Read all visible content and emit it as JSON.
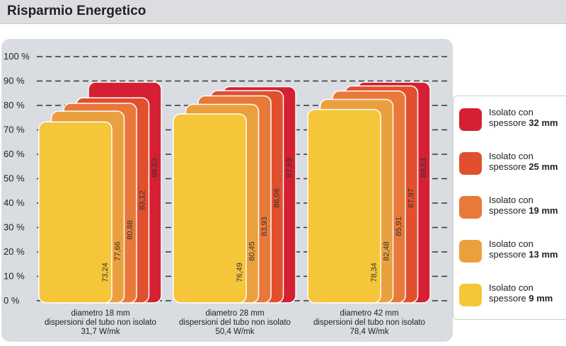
{
  "title": "Risparmio Energetico",
  "chart_data": {
    "type": "bar",
    "title": "Risparmio Energetico",
    "yticks": [
      "0 %",
      "10 %",
      "20 %",
      "30 %",
      "40 %",
      "50 %",
      "60 %",
      "70 %",
      "80 %",
      "90 %",
      "100 %"
    ],
    "ylim": [
      0,
      100
    ],
    "grid": true,
    "legend_placement": "right",
    "categories": [
      {
        "line1": "diametro 18 mm",
        "line2": "dispersioni del tubo non isolato",
        "line3": "31,7 W/mk"
      },
      {
        "line1": "diametro 28 mm",
        "line2": "dispersioni del tubo non isolato",
        "line3": "50,4 W/mk"
      },
      {
        "line1": "diametro 42 mm",
        "line2": "dispersioni del tubo non isolato",
        "line3": "78,4 W/mk"
      }
    ],
    "series": [
      {
        "name": "Isolato con spessore 9 mm",
        "prefix": "Isolato con",
        "mid": "spessore",
        "bold": "9 mm",
        "color": "#f5c53a",
        "values": [
          73.24,
          76.49,
          78.34
        ],
        "labels": [
          "73,24",
          "76,49",
          "78,34"
        ]
      },
      {
        "name": "Isolato con spessore 13 mm",
        "prefix": "Isolato con",
        "mid": "spessore",
        "bold": "13 mm",
        "color": "#eba03f",
        "values": [
          77.66,
          80.45,
          82.48
        ],
        "labels": [
          "77,66",
          "80,45",
          "82,48"
        ]
      },
      {
        "name": "Isolato con spessore 19 mm",
        "prefix": "Isolato con",
        "mid": "spessore",
        "bold": "19 mm",
        "color": "#e8793a",
        "values": [
          80.88,
          83.93,
          85.91
        ],
        "labels": [
          "80,88",
          "83,93",
          "85,91"
        ]
      },
      {
        "name": "Isolato con spessore 25 mm",
        "prefix": "Isolato con",
        "mid": "spessore",
        "bold": "25 mm",
        "color": "#e0502e",
        "values": [
          83.12,
          86.06,
          87.97
        ],
        "labels": [
          "83,12",
          "86,06",
          "87,97"
        ]
      },
      {
        "name": "Isolato con spessore 32 mm",
        "prefix": "Isolato con",
        "mid": "spessore",
        "bold": "32 mm",
        "color": "#d42032",
        "values": [
          89.53,
          87.69,
          89.53
        ],
        "labels": [
          "89,53",
          "87,69",
          "89,53"
        ]
      }
    ]
  }
}
